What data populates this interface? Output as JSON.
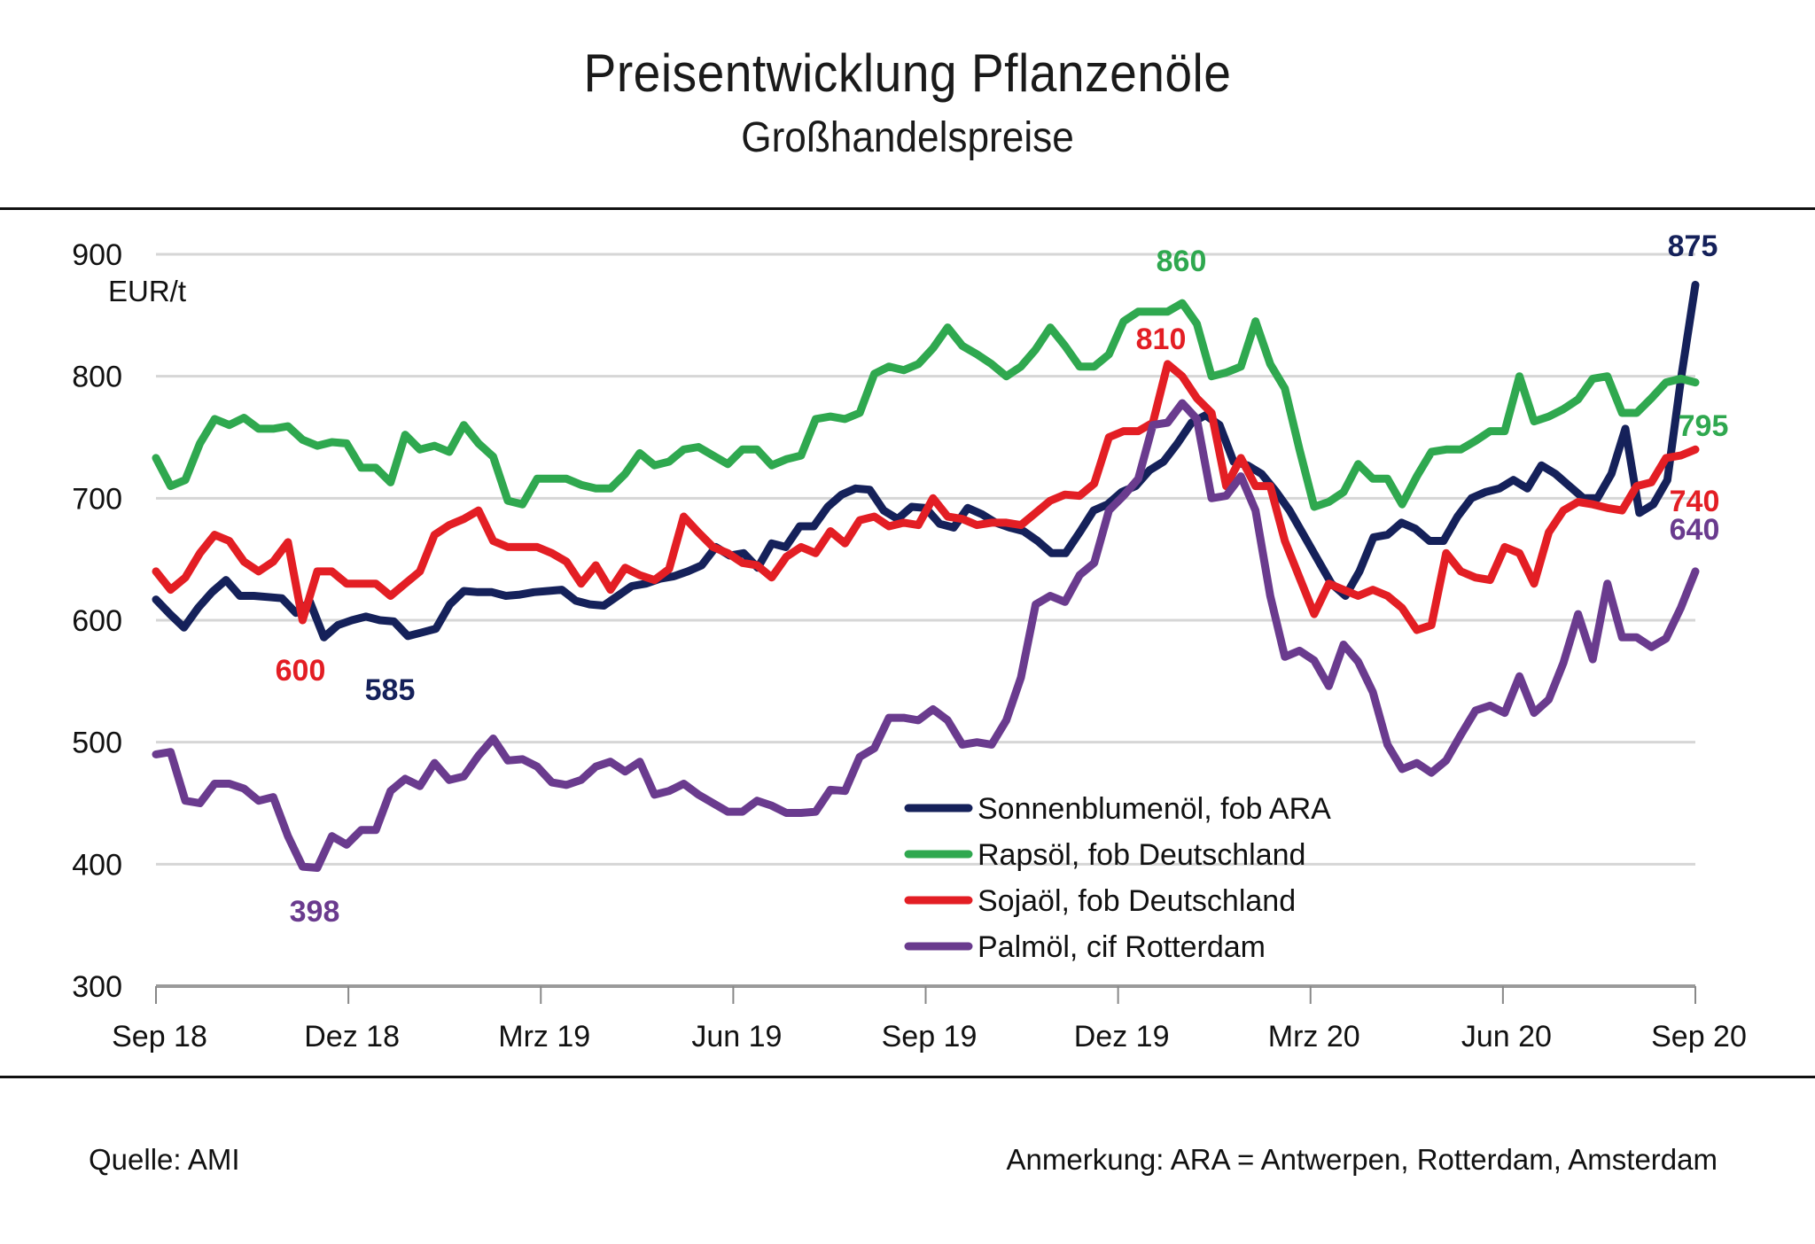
{
  "header": {
    "title": "Preisentwicklung Pflanzenöle",
    "subtitle": "Großhandelspreise"
  },
  "footer": {
    "source": "Quelle: AMI",
    "note": "Anmerkung: ARA = Antwerpen, Rotterdam, Amsterdam"
  },
  "chart_data": {
    "type": "line",
    "title": "Preisentwicklung Pflanzenöle",
    "subtitle": "Großhandelspreise",
    "ylabel": "EUR/t",
    "xlabel": "",
    "ylim": [
      300,
      900
    ],
    "yticks": [
      300,
      400,
      500,
      600,
      700,
      800,
      900
    ],
    "x_tick_labels": [
      "Sep 18",
      "Dez 18",
      "Mrz 19",
      "Jun 19",
      "Sep 19",
      "Dez 19",
      "Mrz 20",
      "Jun 20",
      "Sep 20"
    ],
    "x_range_weeks": [
      0,
      104
    ],
    "grid": true,
    "legend_position": "bottom-right",
    "series": [
      {
        "name": "Sonnenblumenöl, fob ARA",
        "color": "#15215a",
        "values": [
          617,
          605,
          594,
          610,
          623,
          633,
          620,
          620,
          619,
          618,
          606,
          615,
          586,
          596,
          600,
          603,
          600,
          599,
          587,
          590,
          593,
          613,
          624,
          623,
          623,
          620,
          621,
          623,
          624,
          625,
          616,
          613,
          612,
          620,
          628,
          630,
          634,
          636,
          640,
          645,
          660,
          653,
          655,
          643,
          663,
          660,
          677,
          677,
          693,
          703,
          708,
          707,
          690,
          683,
          693,
          692,
          679,
          676,
          692,
          687,
          680,
          676,
          673,
          665,
          655,
          655,
          672,
          690,
          695,
          705,
          710,
          723,
          730,
          745,
          762,
          768,
          760,
          730,
          727,
          720,
          706,
          690,
          670,
          650,
          630,
          620,
          640,
          668,
          670,
          680,
          675,
          665,
          665,
          685,
          700,
          705,
          708,
          715,
          708,
          727,
          720,
          710,
          700,
          700,
          720,
          757,
          688,
          695,
          715,
          800,
          875
        ],
        "annotations": [
          {
            "label": "585",
            "value": 585
          },
          {
            "label": "875",
            "value": 875
          }
        ]
      },
      {
        "name": "Rapsöl, fob Deutschland",
        "color": "#2fa84f",
        "values": [
          733,
          710,
          715,
          745,
          765,
          760,
          766,
          757,
          757,
          759,
          748,
          743,
          746,
          745,
          725,
          725,
          713,
          752,
          740,
          743,
          738,
          760,
          745,
          734,
          698,
          695,
          716,
          716,
          716,
          711,
          708,
          708,
          720,
          737,
          727,
          730,
          740,
          742,
          735,
          728,
          740,
          740,
          727,
          732,
          735,
          765,
          767,
          765,
          770,
          802,
          808,
          805,
          810,
          823,
          840,
          825,
          818,
          810,
          800,
          808,
          822,
          840,
          825,
          808,
          808,
          818,
          845,
          853,
          853,
          853,
          860,
          843,
          800,
          803,
          808,
          845,
          810,
          790,
          740,
          693,
          697,
          705,
          728,
          716,
          716,
          695,
          718,
          738,
          740,
          740,
          747,
          755,
          755,
          800,
          763,
          767,
          773,
          781,
          798,
          800,
          770,
          770,
          782,
          795,
          798,
          795
        ],
        "annotations": [
          {
            "label": "860",
            "value": 860
          },
          {
            "label": "795",
            "value": 795
          }
        ]
      },
      {
        "name": "Sojaöl, fob Deutschland",
        "color": "#e31e24",
        "values": [
          640,
          625,
          635,
          655,
          670,
          665,
          648,
          640,
          648,
          664,
          600,
          640,
          640,
          630,
          630,
          630,
          620,
          630,
          640,
          670,
          678,
          683,
          690,
          665,
          660,
          660,
          660,
          655,
          648,
          630,
          645,
          625,
          643,
          637,
          633,
          642,
          685,
          672,
          660,
          655,
          647,
          645,
          635,
          652,
          660,
          655,
          673,
          663,
          682,
          685,
          677,
          680,
          678,
          700,
          685,
          683,
          678,
          680,
          680,
          678,
          688,
          698,
          703,
          702,
          712,
          750,
          755,
          755,
          762,
          810,
          800,
          782,
          770,
          710,
          733,
          710,
          710,
          665,
          635,
          605,
          630,
          625,
          620,
          625,
          620,
          610,
          592,
          596,
          655,
          640,
          635,
          633,
          660,
          655,
          630,
          672,
          690,
          697,
          695,
          692,
          690,
          710,
          713,
          733,
          735,
          740
        ],
        "annotations": [
          {
            "label": "600",
            "value": 600
          },
          {
            "label": "810",
            "value": 810
          },
          {
            "label": "740",
            "value": 740
          }
        ]
      },
      {
        "name": "Palmöl, cif Rotterdam",
        "color": "#6a3b8e",
        "values": [
          490,
          492,
          452,
          450,
          466,
          466,
          462,
          452,
          455,
          423,
          398,
          397,
          423,
          416,
          428,
          428,
          460,
          470,
          464,
          483,
          469,
          472,
          489,
          503,
          485,
          486,
          480,
          467,
          465,
          469,
          480,
          484,
          476,
          484,
          457,
          460,
          466,
          457,
          450,
          443,
          443,
          452,
          448,
          442,
          442,
          443,
          461,
          460,
          488,
          495,
          520,
          520,
          518,
          527,
          518,
          498,
          500,
          498,
          518,
          553,
          613,
          620,
          615,
          637,
          647,
          690,
          702,
          716,
          760,
          762,
          778,
          765,
          700,
          702,
          718,
          690,
          620,
          570,
          575,
          567,
          546,
          580,
          566,
          541,
          498,
          478,
          483,
          475,
          485,
          506,
          526,
          530,
          524,
          554,
          524,
          535,
          565,
          605,
          568,
          630,
          586,
          586,
          578,
          585,
          610,
          640
        ],
        "annotations": [
          {
            "label": "398",
            "value": 398
          },
          {
            "label": "640",
            "value": 640
          }
        ]
      }
    ]
  }
}
